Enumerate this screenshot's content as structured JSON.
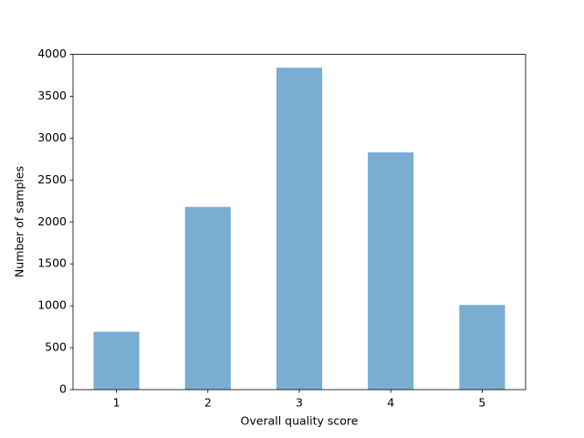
{
  "chart_data": {
    "type": "bar",
    "x_label": "Overall quality score",
    "y_label": "Number of samples",
    "x": [
      1,
      2,
      3,
      4,
      5
    ],
    "values": [
      690,
      2180,
      3840,
      2830,
      1010
    ],
    "color": "#79add2",
    "xlim": [
      0.525,
      5.475
    ],
    "xticks": [
      1,
      2,
      3,
      4,
      5
    ],
    "ylim": [
      0,
      4000
    ],
    "yticks": [
      0,
      500,
      1000,
      1500,
      2000,
      2500,
      3000,
      3500,
      4000
    ],
    "grid": false
  }
}
